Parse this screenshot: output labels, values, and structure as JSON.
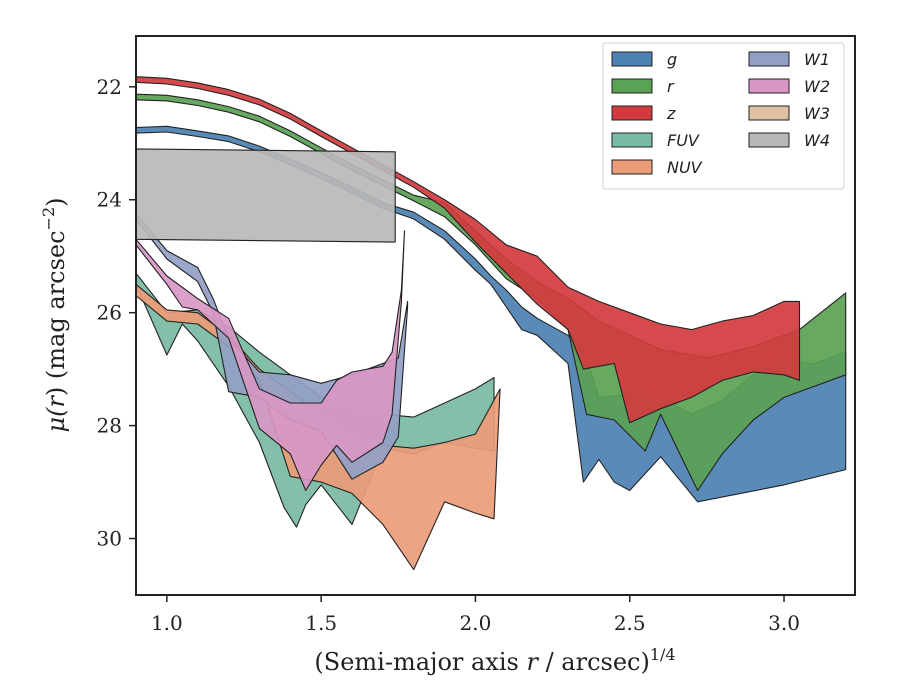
{
  "chart_data": {
    "type": "area",
    "xlabel_main": "(Semi-major axis ",
    "xlabel_var": "r",
    "xlabel_tail": " / arcsec)",
    "xlabel_sup": "1/4",
    "ylabel_main": "μ(",
    "ylabel_var": "r",
    "ylabel_tail": ") (mag arcsec",
    "ylabel_sup": "−2",
    "ylabel_end": ")",
    "xlim": [
      0.9,
      3.23
    ],
    "ylim": [
      31.0,
      21.1
    ],
    "y_inverted": true,
    "xticks": [
      1.0,
      1.5,
      2.0,
      2.5,
      3.0
    ],
    "xtick_labels": [
      "1.0",
      "1.5",
      "2.0",
      "2.5",
      "3.0"
    ],
    "yticks": [
      22,
      24,
      26,
      28,
      30
    ],
    "ytick_labels": [
      "22",
      "24",
      "26",
      "28",
      "30"
    ],
    "grid": false,
    "legend_position": "top-right",
    "legend_columns": 2,
    "series": [
      {
        "name": "g",
        "color": "#4c81b2",
        "upper": [
          [
            0.9,
            22.72
          ],
          [
            1.0,
            22.7
          ],
          [
            1.1,
            22.78
          ],
          [
            1.2,
            22.87
          ],
          [
            1.3,
            23.05
          ],
          [
            1.4,
            23.28
          ],
          [
            1.5,
            23.52
          ],
          [
            1.6,
            23.78
          ],
          [
            1.7,
            24.05
          ],
          [
            1.8,
            24.22
          ],
          [
            1.9,
            24.55
          ],
          [
            2.0,
            25.05
          ],
          [
            2.05,
            25.35
          ],
          [
            2.1,
            25.6
          ],
          [
            2.15,
            25.9
          ],
          [
            2.2,
            26.1
          ],
          [
            2.3,
            26.4
          ],
          [
            2.35,
            26.65
          ],
          [
            2.4,
            27.5
          ],
          [
            2.5,
            27.45
          ],
          [
            2.6,
            27.5
          ],
          [
            2.7,
            27.8
          ],
          [
            2.8,
            27.55
          ],
          [
            2.9,
            27.1
          ],
          [
            3.0,
            26.85
          ],
          [
            3.1,
            26.9
          ],
          [
            3.2,
            26.7
          ]
        ],
        "lower": [
          [
            0.9,
            22.82
          ],
          [
            1.0,
            22.8
          ],
          [
            1.1,
            22.88
          ],
          [
            1.2,
            22.97
          ],
          [
            1.3,
            23.15
          ],
          [
            1.4,
            23.38
          ],
          [
            1.5,
            23.62
          ],
          [
            1.6,
            23.88
          ],
          [
            1.7,
            24.15
          ],
          [
            1.8,
            24.34
          ],
          [
            1.9,
            24.7
          ],
          [
            2.0,
            25.25
          ],
          [
            2.05,
            25.5
          ],
          [
            2.1,
            25.9
          ],
          [
            2.15,
            26.3
          ],
          [
            2.2,
            26.4
          ],
          [
            2.3,
            26.9
          ],
          [
            2.35,
            29.0
          ],
          [
            2.4,
            28.6
          ],
          [
            2.45,
            29.0
          ],
          [
            2.5,
            29.15
          ],
          [
            2.6,
            28.55
          ],
          [
            2.72,
            29.35
          ],
          [
            3.0,
            29.05
          ],
          [
            3.2,
            28.78
          ]
        ]
      },
      {
        "name": "r",
        "color": "#5aa254",
        "upper": [
          [
            0.9,
            22.13
          ],
          [
            1.0,
            22.15
          ],
          [
            1.1,
            22.23
          ],
          [
            1.2,
            22.35
          ],
          [
            1.3,
            22.52
          ],
          [
            1.4,
            22.78
          ],
          [
            1.5,
            23.08
          ],
          [
            1.6,
            23.38
          ],
          [
            1.7,
            23.65
          ],
          [
            1.8,
            23.92
          ],
          [
            1.9,
            24.05
          ],
          [
            2.0,
            24.55
          ],
          [
            2.1,
            25.05
          ],
          [
            2.2,
            25.45
          ],
          [
            2.3,
            25.75
          ],
          [
            2.4,
            26.15
          ],
          [
            2.5,
            26.4
          ],
          [
            2.6,
            26.65
          ],
          [
            2.75,
            26.8
          ],
          [
            2.9,
            26.6
          ],
          [
            3.05,
            26.3
          ],
          [
            3.2,
            25.65
          ]
        ],
        "lower": [
          [
            0.9,
            22.23
          ],
          [
            1.0,
            22.25
          ],
          [
            1.1,
            22.33
          ],
          [
            1.2,
            22.45
          ],
          [
            1.3,
            22.62
          ],
          [
            1.4,
            22.88
          ],
          [
            1.5,
            23.18
          ],
          [
            1.6,
            23.48
          ],
          [
            1.7,
            23.75
          ],
          [
            1.8,
            24.02
          ],
          [
            1.9,
            24.3
          ],
          [
            2.0,
            24.8
          ],
          [
            2.1,
            25.4
          ],
          [
            2.2,
            25.75
          ],
          [
            2.3,
            26.3
          ],
          [
            2.36,
            27.8
          ],
          [
            2.45,
            27.9
          ],
          [
            2.55,
            28.45
          ],
          [
            2.6,
            27.8
          ],
          [
            2.72,
            29.15
          ],
          [
            2.8,
            28.5
          ],
          [
            2.9,
            27.9
          ],
          [
            3.0,
            27.5
          ],
          [
            3.2,
            27.1
          ]
        ]
      },
      {
        "name": "z",
        "color": "#d23b3e",
        "upper": [
          [
            0.9,
            21.82
          ],
          [
            1.0,
            21.85
          ],
          [
            1.1,
            21.93
          ],
          [
            1.2,
            22.05
          ],
          [
            1.3,
            22.22
          ],
          [
            1.4,
            22.47
          ],
          [
            1.5,
            22.78
          ],
          [
            1.6,
            23.08
          ],
          [
            1.7,
            23.38
          ],
          [
            1.8,
            23.68
          ],
          [
            1.9,
            24.0
          ],
          [
            2.0,
            24.35
          ],
          [
            2.1,
            24.8
          ],
          [
            2.2,
            25.0
          ],
          [
            2.3,
            25.55
          ],
          [
            2.4,
            25.8
          ],
          [
            2.5,
            26.0
          ],
          [
            2.6,
            26.2
          ],
          [
            2.7,
            26.3
          ],
          [
            2.8,
            26.15
          ],
          [
            2.9,
            26.05
          ],
          [
            3.0,
            25.8
          ],
          [
            3.05,
            25.8
          ]
        ],
        "lower": [
          [
            0.9,
            21.92
          ],
          [
            1.0,
            21.95
          ],
          [
            1.1,
            22.03
          ],
          [
            1.2,
            22.15
          ],
          [
            1.3,
            22.32
          ],
          [
            1.4,
            22.57
          ],
          [
            1.5,
            22.88
          ],
          [
            1.6,
            23.18
          ],
          [
            1.7,
            23.48
          ],
          [
            1.8,
            23.78
          ],
          [
            1.9,
            24.15
          ],
          [
            2.0,
            24.75
          ],
          [
            2.1,
            25.3
          ],
          [
            2.2,
            25.85
          ],
          [
            2.3,
            26.3
          ],
          [
            2.35,
            27.0
          ],
          [
            2.45,
            26.9
          ],
          [
            2.5,
            27.95
          ],
          [
            2.6,
            27.7
          ],
          [
            2.7,
            27.5
          ],
          [
            2.8,
            27.2
          ],
          [
            2.9,
            27.05
          ],
          [
            3.0,
            27.1
          ],
          [
            3.05,
            27.2
          ]
        ]
      },
      {
        "name": "FUV",
        "color": "#79bba2",
        "upper": [
          [
            0.9,
            25.3
          ],
          [
            1.0,
            26.0
          ],
          [
            1.1,
            25.95
          ],
          [
            1.2,
            26.25
          ],
          [
            1.3,
            26.7
          ],
          [
            1.4,
            27.1
          ],
          [
            1.5,
            27.5
          ],
          [
            1.6,
            27.7
          ],
          [
            1.7,
            27.8
          ],
          [
            1.8,
            27.85
          ],
          [
            1.9,
            27.6
          ],
          [
            2.0,
            27.35
          ],
          [
            2.06,
            27.15
          ]
        ],
        "lower": [
          [
            0.9,
            25.5
          ],
          [
            1.0,
            26.75
          ],
          [
            1.05,
            26.2
          ],
          [
            1.1,
            26.5
          ],
          [
            1.2,
            27.3
          ],
          [
            1.3,
            28.3
          ],
          [
            1.38,
            29.45
          ],
          [
            1.42,
            29.8
          ],
          [
            1.45,
            29.4
          ],
          [
            1.5,
            29.05
          ],
          [
            1.6,
            29.75
          ],
          [
            1.7,
            28.4
          ],
          [
            1.8,
            28.5
          ],
          [
            1.9,
            28.3
          ],
          [
            2.0,
            28.4
          ],
          [
            2.06,
            28.45
          ]
        ]
      },
      {
        "name": "NUV",
        "color": "#eb9c78",
        "upper": [
          [
            0.9,
            25.5
          ],
          [
            1.0,
            25.95
          ],
          [
            1.1,
            26.0
          ],
          [
            1.2,
            26.4
          ],
          [
            1.3,
            27.0
          ],
          [
            1.4,
            27.4
          ],
          [
            1.5,
            27.8
          ],
          [
            1.6,
            28.2
          ],
          [
            1.7,
            28.35
          ],
          [
            1.8,
            28.4
          ],
          [
            1.9,
            28.3
          ],
          [
            2.0,
            28.15
          ],
          [
            2.08,
            27.35
          ]
        ],
        "lower": [
          [
            0.9,
            25.7
          ],
          [
            1.0,
            26.15
          ],
          [
            1.1,
            26.2
          ],
          [
            1.2,
            26.6
          ],
          [
            1.3,
            27.2
          ],
          [
            1.4,
            28.9
          ],
          [
            1.5,
            29.0
          ],
          [
            1.6,
            29.2
          ],
          [
            1.7,
            29.75
          ],
          [
            1.8,
            30.55
          ],
          [
            1.9,
            29.35
          ],
          [
            2.0,
            29.55
          ],
          [
            2.06,
            29.65
          ]
        ]
      },
      {
        "name": "W1",
        "color": "#929fc5",
        "upper": [
          [
            0.9,
            24.25
          ],
          [
            1.0,
            24.9
          ],
          [
            1.1,
            25.2
          ],
          [
            1.15,
            25.75
          ],
          [
            1.2,
            26.45
          ],
          [
            1.3,
            27.05
          ],
          [
            1.4,
            27.1
          ],
          [
            1.5,
            27.25
          ],
          [
            1.6,
            27.1
          ],
          [
            1.7,
            26.9
          ],
          [
            1.75,
            26.8
          ],
          [
            1.78,
            25.8
          ]
        ],
        "lower": [
          [
            0.9,
            24.35
          ],
          [
            1.0,
            25.05
          ],
          [
            1.1,
            25.45
          ],
          [
            1.15,
            26.0
          ],
          [
            1.2,
            27.4
          ],
          [
            1.3,
            27.5
          ],
          [
            1.4,
            27.9
          ],
          [
            1.5,
            28.1
          ],
          [
            1.6,
            28.95
          ],
          [
            1.7,
            28.65
          ],
          [
            1.75,
            28.2
          ],
          [
            1.78,
            25.9
          ]
        ]
      },
      {
        "name": "W2",
        "color": "#d897c4",
        "upper": [
          [
            0.9,
            24.7
          ],
          [
            1.0,
            25.35
          ],
          [
            1.1,
            25.75
          ],
          [
            1.2,
            26.1
          ],
          [
            1.3,
            27.35
          ],
          [
            1.4,
            27.6
          ],
          [
            1.5,
            27.6
          ],
          [
            1.55,
            27.2
          ],
          [
            1.6,
            27.05
          ],
          [
            1.7,
            26.95
          ],
          [
            1.73,
            26.7
          ],
          [
            1.76,
            25.6
          ],
          [
            1.77,
            24.55
          ]
        ],
        "lower": [
          [
            0.9,
            24.8
          ],
          [
            1.0,
            25.5
          ],
          [
            1.05,
            25.9
          ],
          [
            1.1,
            25.95
          ],
          [
            1.2,
            26.45
          ],
          [
            1.3,
            28.05
          ],
          [
            1.4,
            28.5
          ],
          [
            1.45,
            29.15
          ],
          [
            1.5,
            28.7
          ],
          [
            1.55,
            28.35
          ],
          [
            1.6,
            28.65
          ],
          [
            1.7,
            28.3
          ],
          [
            1.73,
            27.8
          ],
          [
            1.76,
            25.8
          ]
        ]
      },
      {
        "name": "W3",
        "color": "#dfc1a1",
        "upper": [],
        "lower": []
      },
      {
        "name": "W4",
        "color": "#b8b8b8",
        "upper": [
          [
            0.9,
            23.1
          ],
          [
            1.74,
            23.15
          ]
        ],
        "lower": [
          [
            0.9,
            24.7
          ],
          [
            1.74,
            24.75
          ]
        ]
      }
    ]
  }
}
